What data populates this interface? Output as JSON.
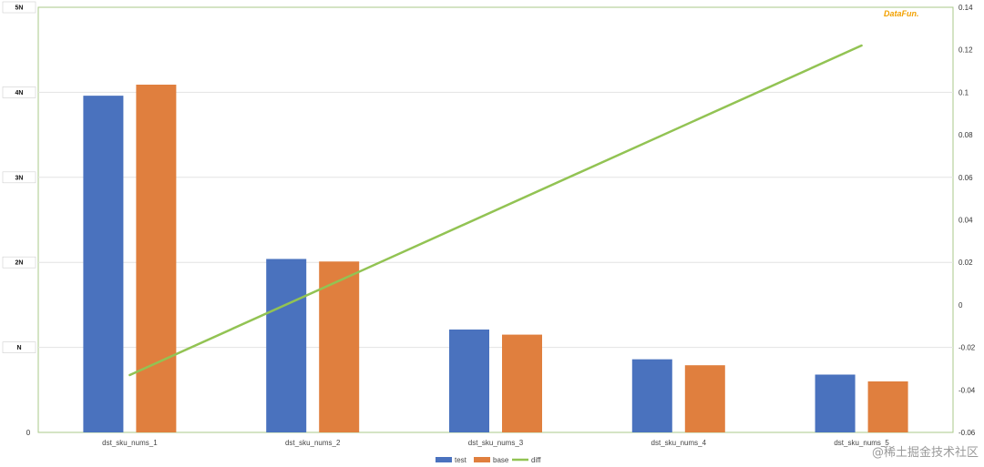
{
  "chart_data": {
    "type": "bar",
    "categories": [
      "dst_sku_nums_1",
      "dst_sku_nums_2",
      "dst_sku_nums_3",
      "dst_sku_nums_4",
      "dst_sku_nums_5"
    ],
    "series": [
      {
        "name": "test",
        "type": "bar",
        "axis": "left",
        "color": "#4a72be",
        "values": [
          3.96,
          2.04,
          1.21,
          0.86,
          0.68
        ]
      },
      {
        "name": "base",
        "type": "bar",
        "axis": "left",
        "color": "#e07f3e",
        "values": [
          4.09,
          2.01,
          1.15,
          0.79,
          0.6
        ]
      },
      {
        "name": "diff",
        "type": "line",
        "axis": "right",
        "color": "#92c353",
        "values": [
          -0.033,
          null,
          null,
          null,
          0.122
        ]
      }
    ],
    "left_axis": {
      "ylim": [
        0,
        5
      ],
      "ticks": [
        {
          "value": 0,
          "label": "0"
        },
        {
          "value": 1,
          "label": "N"
        },
        {
          "value": 2,
          "label": "2N"
        },
        {
          "value": 3,
          "label": "3N"
        },
        {
          "value": 4,
          "label": "4N"
        },
        {
          "value": 5,
          "label": "5N"
        }
      ]
    },
    "right_axis": {
      "ylim": [
        -0.06,
        0.14
      ],
      "ticks": [
        "-0.06",
        "-0.04",
        "-0.02",
        "0",
        "0.02",
        "0.04",
        "0.06",
        "0.08",
        "0.1",
        "0.12",
        "0.14"
      ]
    },
    "grid": true,
    "legend_position": "bottom"
  },
  "logo_text": "DataFun.",
  "watermark": "@稀土掘金技术社区"
}
